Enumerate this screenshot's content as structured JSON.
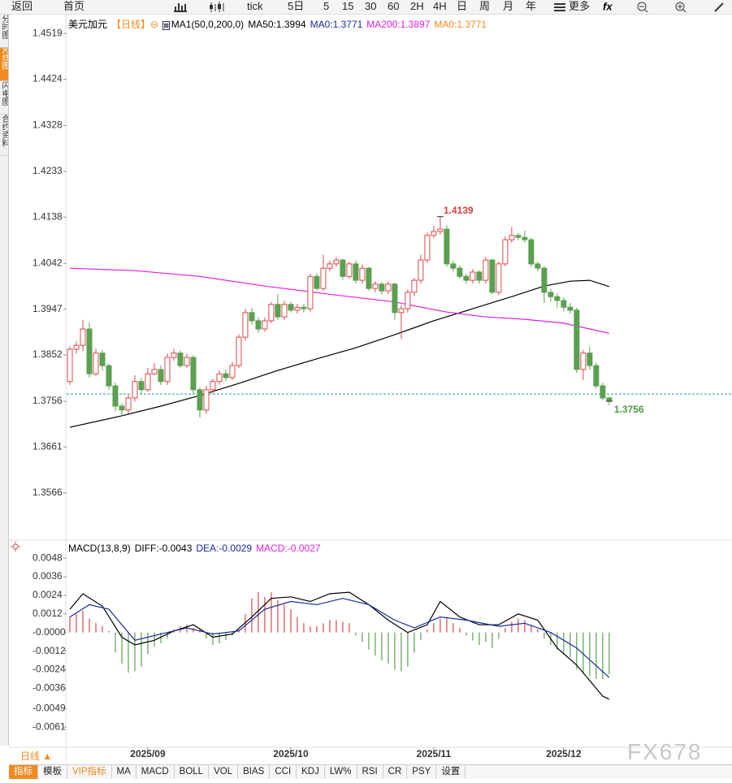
{
  "toolbar": {
    "items": [
      "返回",
      "首页",
      "tick",
      "5日",
      "5",
      "15",
      "30",
      "60",
      "2H",
      "4H",
      "日",
      "周",
      "月",
      "年",
      "更多"
    ]
  },
  "sidebar": {
    "tabs": [
      "分时图",
      "K线图",
      "闪电图",
      "合约资料"
    ]
  },
  "chart_data": [
    {
      "type": "candlestick",
      "title": "美元加元",
      "period_tag": "【日线】",
      "indicator": "MA1(50,0,200,0)",
      "legend": [
        {
          "text": "MA50:1.3994",
          "color": "#000000"
        },
        {
          "text": "MA0:1.3771",
          "color": "#1a2a9a"
        },
        {
          "text": "MA200:1.3897",
          "color": "#e020e0"
        },
        {
          "text": "MA0:1.3771",
          "color": "#f08a20"
        }
      ],
      "up_color": "#e04848",
      "down_color": "#5aa050",
      "grid": false,
      "xlim": [
        -0.5,
        101.9
      ],
      "ylim": [
        1.3468,
        1.4558
      ],
      "yticks": [
        1.4519,
        1.4424,
        1.4328,
        1.4233,
        1.4138,
        1.4042,
        1.3947,
        1.3852,
        1.3756,
        1.3661,
        1.3566
      ],
      "xticks": [
        {
          "value": 12,
          "label": "2025/09"
        },
        {
          "value": 34,
          "label": "2025/10"
        },
        {
          "value": 56,
          "label": "2025/11"
        },
        {
          "value": 76,
          "label": "2025/12"
        }
      ],
      "open": [
        1.3797,
        1.3864,
        1.3872,
        1.3906,
        1.3813,
        1.3856,
        1.383,
        1.3788,
        1.3746,
        1.3738,
        1.3763,
        1.3797,
        1.378,
        1.3813,
        1.3822,
        1.3797,
        1.3847,
        1.3856,
        1.383,
        1.3847,
        1.378,
        1.3738,
        1.378,
        1.3797,
        1.3813,
        1.3805,
        1.383,
        1.3889,
        1.394,
        1.3923,
        1.3906,
        1.3923,
        1.3957,
        1.3931,
        1.3957,
        1.3945,
        1.3951,
        1.3948,
        1.4015,
        1.399,
        1.4032,
        1.4041,
        1.4049,
        1.4015,
        1.4041,
        1.4007,
        1.4032,
        1.399,
        1.3999,
        1.3985,
        1.3999,
        1.394,
        1.3948,
        1.3982,
        1.4007,
        1.4049,
        1.41,
        1.4108,
        1.4113,
        1.4041,
        1.4032,
        1.4015,
        1.4007,
        1.4024,
        1.4007,
        1.4049,
        1.3982,
        1.4041,
        1.4091,
        1.41,
        1.4096,
        1.4091,
        1.4041,
        1.4032,
        1.3982,
        1.3973,
        1.3965,
        1.3951,
        1.3945,
        1.3822,
        1.3856,
        1.383,
        1.3788,
        1.3763
      ],
      "high": [
        1.387,
        1.388,
        1.3925,
        1.392,
        1.3865,
        1.3862,
        1.3835,
        1.3795,
        1.3752,
        1.377,
        1.381,
        1.3805,
        1.3825,
        1.3835,
        1.383,
        1.3855,
        1.3865,
        1.3862,
        1.3855,
        1.3852,
        1.3785,
        1.3788,
        1.3803,
        1.382,
        1.3822,
        1.3838,
        1.3895,
        1.3948,
        1.395,
        1.393,
        1.393,
        1.3962,
        1.3978,
        1.3965,
        1.3962,
        1.3958,
        1.3958,
        1.402,
        1.4022,
        1.406,
        1.4048,
        1.4055,
        1.4052,
        1.4046,
        1.4048,
        1.404,
        1.4035,
        1.4005,
        1.4003,
        1.4004,
        1.4002,
        1.3955,
        1.3988,
        1.4012,
        1.406,
        1.4106,
        1.412,
        1.4139,
        1.412,
        1.4048,
        1.4038,
        1.402,
        1.403,
        1.4028,
        1.4055,
        1.4052,
        1.4046,
        1.4098,
        1.4118,
        1.4105,
        1.411,
        1.4096,
        1.4046,
        1.4036,
        1.399,
        1.398,
        1.3972,
        1.396,
        1.395,
        1.3862,
        1.387,
        1.3836,
        1.3795,
        1.3765
      ],
      "low": [
        1.379,
        1.3855,
        1.386,
        1.3805,
        1.3808,
        1.382,
        1.378,
        1.3735,
        1.3725,
        1.373,
        1.3755,
        1.377,
        1.3775,
        1.381,
        1.379,
        1.379,
        1.384,
        1.3825,
        1.3825,
        1.3772,
        1.3722,
        1.373,
        1.3772,
        1.379,
        1.3798,
        1.38,
        1.3825,
        1.3882,
        1.3915,
        1.3898,
        1.39,
        1.3918,
        1.3925,
        1.3925,
        1.394,
        1.3938,
        1.394,
        1.3942,
        1.3985,
        1.3985,
        1.4025,
        1.4035,
        1.4008,
        1.401,
        1.4,
        1.4,
        1.3985,
        1.3982,
        1.3978,
        1.3978,
        1.3925,
        1.3885,
        1.394,
        1.3975,
        1.4,
        1.4043,
        1.4095,
        1.4102,
        1.4035,
        1.4025,
        1.401,
        1.4,
        1.4,
        1.4,
        1.4,
        1.3978,
        1.3976,
        1.4036,
        1.4085,
        1.409,
        1.4085,
        1.4035,
        1.4025,
        1.396,
        1.3962,
        1.395,
        1.3942,
        1.3938,
        1.3815,
        1.38,
        1.3822,
        1.3782,
        1.3758,
        1.3748
      ],
      "close": [
        1.3864,
        1.3872,
        1.3906,
        1.3813,
        1.3856,
        1.383,
        1.3788,
        1.3746,
        1.3738,
        1.3763,
        1.3797,
        1.378,
        1.3813,
        1.3822,
        1.3797,
        1.3847,
        1.3856,
        1.383,
        1.3847,
        1.378,
        1.3738,
        1.378,
        1.3797,
        1.3813,
        1.3805,
        1.383,
        1.3889,
        1.394,
        1.3923,
        1.3906,
        1.3923,
        1.3957,
        1.3931,
        1.3957,
        1.3945,
        1.3951,
        1.3948,
        1.4015,
        1.399,
        1.4032,
        1.4041,
        1.4049,
        1.4015,
        1.4041,
        1.4007,
        1.4032,
        1.399,
        1.3999,
        1.3985,
        1.3999,
        1.394,
        1.3948,
        1.3982,
        1.4007,
        1.4049,
        1.41,
        1.4108,
        1.4113,
        1.4041,
        1.4032,
        1.4015,
        1.4007,
        1.4024,
        1.4007,
        1.4049,
        1.3982,
        1.4041,
        1.4091,
        1.41,
        1.4096,
        1.4091,
        1.4041,
        1.4032,
        1.3982,
        1.3973,
        1.3965,
        1.3951,
        1.3945,
        1.3822,
        1.3856,
        1.383,
        1.3788,
        1.3763,
        1.3756
      ],
      "series": [
        {
          "color": "#000000",
          "x": [
            0,
            8,
            14,
            20,
            26,
            32,
            38,
            44,
            50,
            56,
            62,
            68,
            73,
            77,
            80,
            83
          ],
          "values": [
            1.3702,
            1.3726,
            1.3746,
            1.3768,
            1.3793,
            1.382,
            1.3844,
            1.3867,
            1.3894,
            1.3923,
            1.3948,
            1.3973,
            1.3995,
            1.4005,
            1.4007,
            1.3994
          ]
        },
        {
          "color": "#e020e0",
          "x": [
            0,
            10,
            20,
            30,
            40,
            50,
            58,
            64,
            70,
            76,
            80,
            83
          ],
          "values": [
            1.4032,
            1.4027,
            1.4015,
            1.3995,
            1.3978,
            1.3962,
            1.3941,
            1.3931,
            1.3926,
            1.3918,
            1.3906,
            1.3897
          ]
        }
      ],
      "price_line": 1.3771,
      "price_line_color": "#2a9aa8",
      "annotations": [
        {
          "value": 1.4139,
          "index": 57,
          "color": "#d84040",
          "side": "top"
        },
        {
          "value": 1.3756,
          "index": 83,
          "color": "#4a9a40",
          "side": "bottom"
        }
      ]
    },
    {
      "type": "macd",
      "title": "MACD(13,8,9)",
      "xlim": [
        -0.5,
        101.9
      ],
      "ylim": [
        -0.0074,
        0.0058
      ],
      "yticks": [
        0.0048,
        0.0036,
        0.0024,
        0.0012,
        {
          "value": 0,
          "label": "-0.0000"
        },
        -0.0012,
        -0.0024,
        -0.0036,
        -0.0049,
        -0.0061
      ],
      "series": [
        {
          "name": "DIFF:-0.0043",
          "color": "#000000",
          "x": [
            0,
            2,
            5,
            8,
            10,
            13,
            16,
            19,
            22,
            25,
            28,
            31,
            34,
            37,
            40,
            43,
            46,
            49,
            52,
            55,
            57,
            60,
            63,
            66,
            69,
            72,
            75,
            78,
            80,
            82,
            83
          ],
          "values": [
            0.0015,
            0.0025,
            0.0017,
            -0.0003,
            -0.0008,
            -0.0005,
            0.0001,
            0.0005,
            -0.0003,
            -0.0001,
            0.001,
            0.0022,
            0.0023,
            0.002,
            0.0025,
            0.0026,
            0.0018,
            0.0008,
            0.0,
            0.0005,
            0.002,
            0.001,
            0.0005,
            0.0005,
            0.0012,
            0.0008,
            -0.001,
            -0.0021,
            -0.0031,
            -0.0041,
            -0.0043
          ]
        },
        {
          "name": "DEA:-0.0029",
          "color": "#1a2a9a",
          "x": [
            0,
            3,
            6,
            10,
            14,
            18,
            22,
            26,
            30,
            34,
            38,
            42,
            46,
            50,
            53,
            57,
            61,
            66,
            70,
            74,
            78,
            83
          ],
          "values": [
            0.001,
            0.0018,
            0.0015,
            -0.0005,
            -0.0001,
            0.0003,
            -0.0001,
            0.0001,
            0.0015,
            0.002,
            0.0018,
            0.0022,
            0.0018,
            0.0008,
            0.0003,
            0.001,
            0.0008,
            0.0004,
            0.0006,
            0.0,
            -0.001,
            -0.0029
          ]
        },
        {
          "name": "MACD:-0.0027",
          "color": "#e020e0",
          "up_color": "#d84848",
          "down_color": "#5aa050",
          "values": [
            0.001,
            0.0012,
            0.0014,
            0.0009,
            0.0006,
            0.0004,
            0.0001,
            -0.0013,
            -0.002,
            -0.0026,
            -0.0025,
            -0.0022,
            -0.0014,
            -0.0009,
            -0.0007,
            -0.0004,
            0.0002,
            0.0004,
            0.0005,
            0.0003,
            0.0002,
            -0.0004,
            -0.0008,
            -0.0007,
            -0.0005,
            -0.0002,
            0.0002,
            0.0012,
            0.0022,
            0.0026,
            0.0023,
            0.0026,
            0.0021,
            0.0018,
            0.0015,
            0.001,
            0.0006,
            0.0004,
            0.0004,
            0.0006,
            0.0008,
            0.0008,
            0.0007,
            0.0006,
            -0.0002,
            -0.0006,
            -0.0011,
            -0.0015,
            -0.0018,
            -0.002,
            -0.0024,
            -0.0025,
            -0.0022,
            -0.0013,
            -0.0005,
            0.0002,
            0.0006,
            0.0009,
            0.001,
            0.0006,
            0.0003,
            -0.0002,
            -0.0005,
            -0.0008,
            -0.0006,
            -0.001,
            -0.0004,
            0.0003,
            0.0007,
            0.0009,
            0.0008,
            0.0005,
            0.0002,
            -0.0004,
            -0.0008,
            -0.0011,
            -0.0014,
            -0.0016,
            -0.0024,
            -0.0026,
            -0.0028,
            -0.003,
            -0.003,
            -0.0027
          ]
        }
      ]
    }
  ],
  "bottom": {
    "period": "日线 ▲",
    "tabs": [
      "指标",
      "模板",
      "VIP指标",
      "MA",
      "MACD",
      "BOLL",
      "VOL",
      "BIAS",
      "CCI",
      "KDJ",
      "LW%",
      "RSI",
      "CR",
      "PSY",
      "设置"
    ]
  },
  "watermark": "FX678"
}
